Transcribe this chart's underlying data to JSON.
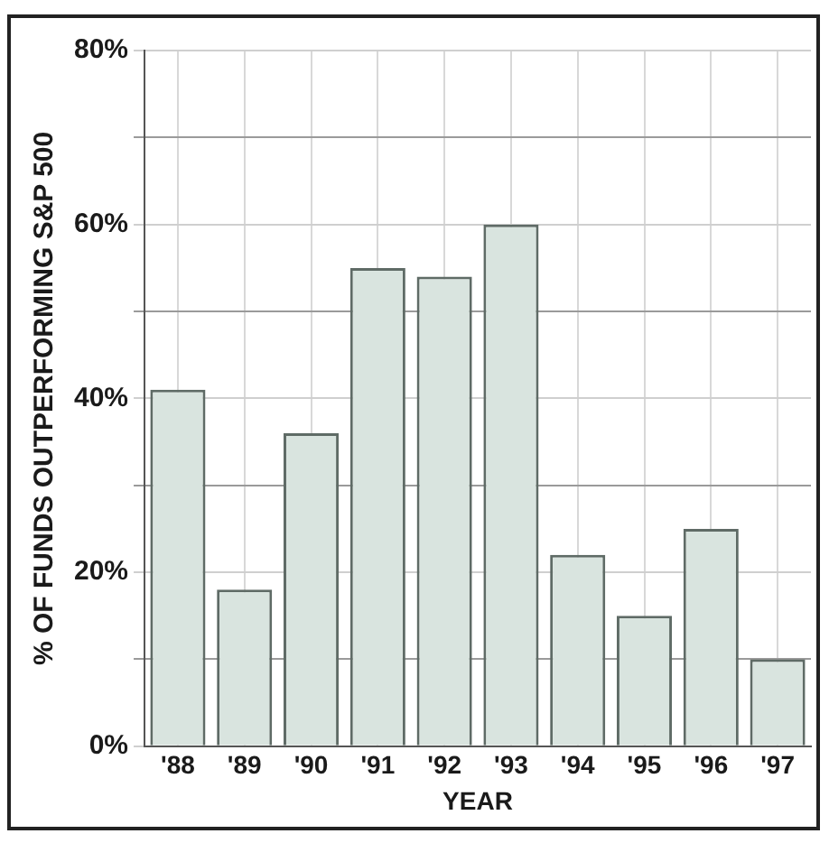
{
  "chart_data": {
    "type": "bar",
    "xlabel": "YEAR",
    "ylabel": "% OF FUNDS OUTPERFORMING S&P 500",
    "categories": [
      "'88",
      "'89",
      "'90",
      "'91",
      "'92",
      "'93",
      "'94",
      "'95",
      "'96",
      "'97"
    ],
    "values": [
      41,
      18,
      36,
      55,
      54,
      60,
      22,
      15,
      25,
      10
    ],
    "color": "#d9e4df",
    "ylim": [
      0,
      80
    ],
    "yticks": [
      {
        "value": 0,
        "label": "0%"
      },
      {
        "value": 10,
        "label": null
      },
      {
        "value": 20,
        "label": "20%"
      },
      {
        "value": 30,
        "label": null
      },
      {
        "value": 40,
        "label": "40%"
      },
      {
        "value": 50,
        "label": null
      },
      {
        "value": 60,
        "label": "60%"
      },
      {
        "value": 70,
        "label": null
      },
      {
        "value": 80,
        "label": "80%"
      }
    ],
    "grid": true
  }
}
